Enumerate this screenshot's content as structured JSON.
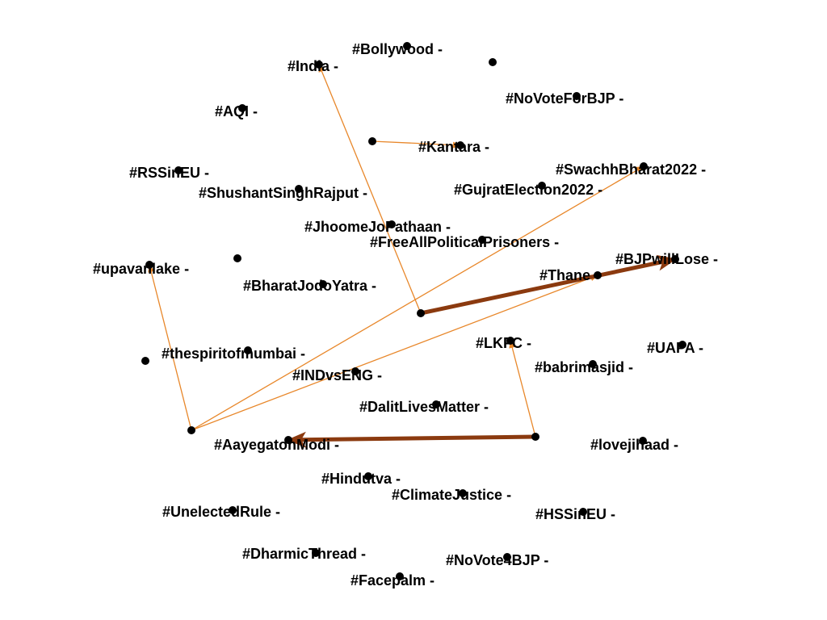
{
  "colors": {
    "background": "#ffffff",
    "node": "#000000",
    "label": "#000000",
    "edge_light": "#e8872a",
    "edge_dark": "#8b3a0f"
  },
  "nodes": [
    {
      "id": "bollywood",
      "label": "#Bollywood -"
    },
    {
      "id": "india",
      "label": "#India -"
    },
    {
      "id": "novoteforbjp",
      "label": "#NoVoteForBJP -"
    },
    {
      "id": "aqi",
      "label": "#AQI -"
    },
    {
      "id": "kantara",
      "label": "#Kantara -"
    },
    {
      "id": "rssineu",
      "label": "#RSSinEU -"
    },
    {
      "id": "swachhbharat2022",
      "label": "#SwachhBharat2022 -"
    },
    {
      "id": "shushantsinghrajput",
      "label": "#ShushantSinghRajput -"
    },
    {
      "id": "gujratelection2022",
      "label": "#GujratElection2022 -"
    },
    {
      "id": "jhoomejopathaan",
      "label": "#JhoomeJoPathaan -"
    },
    {
      "id": "freeallpoliticalprisoners",
      "label": "#FreeAllPoliticalPrisoners -"
    },
    {
      "id": "bjpwilllose",
      "label": "#BJPwillLose -"
    },
    {
      "id": "upavanlake",
      "label": "#upavanlake -"
    },
    {
      "id": "thane",
      "label": "#Thane -"
    },
    {
      "id": "bharatjodoyatra",
      "label": "#BharatJodoYatra -"
    },
    {
      "id": "lkfc",
      "label": "#LKFC -"
    },
    {
      "id": "uapa",
      "label": "#UAPA -"
    },
    {
      "id": "thespiritofmumbai",
      "label": "#thespiritofmumbai -"
    },
    {
      "id": "babrimasjid",
      "label": "#babrimasjid -"
    },
    {
      "id": "indvseng",
      "label": "#INDvsENG -"
    },
    {
      "id": "dalitlivesmatter",
      "label": "#DalitLivesMatter -"
    },
    {
      "id": "aayegatohmodi",
      "label": "#AayegatohModi -"
    },
    {
      "id": "lovejihaad",
      "label": "#lovejihaad -"
    },
    {
      "id": "hindutva",
      "label": "#Hindutva -"
    },
    {
      "id": "climatejustice",
      "label": "#ClimateJustice -"
    },
    {
      "id": "unelectedrule",
      "label": "#UnelectedRule -"
    },
    {
      "id": "hssineu",
      "label": "#HSSinEU -"
    },
    {
      "id": "dharmicthread",
      "label": "#DharmicThread -"
    },
    {
      "id": "novote4bjp",
      "label": "#NoVote4BJP -"
    },
    {
      "id": "facepalm",
      "label": "#Facepalm -"
    },
    {
      "id": "unlabeled-1",
      "label": ""
    },
    {
      "id": "unlabeled-2",
      "label": ""
    },
    {
      "id": "unlabeled-3",
      "label": ""
    },
    {
      "id": "unlabeled-4",
      "label": ""
    },
    {
      "id": "unlabeled-5",
      "label": ""
    },
    {
      "id": "unlabeled-6",
      "label": ""
    },
    {
      "id": "unlabeled-7",
      "label": ""
    }
  ],
  "edges": [
    {
      "from": "unlabeled-1",
      "to": "india",
      "weight": "light"
    },
    {
      "from": "unlabeled-2",
      "to": "kantara",
      "weight": "light"
    },
    {
      "from": "unlabeled-3",
      "to": "upavanlake",
      "weight": "light"
    },
    {
      "from": "unlabeled-3",
      "to": "swachhbharat2022",
      "weight": "light"
    },
    {
      "from": "unlabeled-3",
      "to": "thane",
      "weight": "light"
    },
    {
      "from": "unlabeled-4",
      "to": "lkfc",
      "weight": "light"
    },
    {
      "from": "unlabeled-1",
      "to": "bjpwilllose",
      "weight": "heavy"
    },
    {
      "from": "unlabeled-4",
      "to": "aayegatohmodi",
      "weight": "heavy"
    }
  ]
}
